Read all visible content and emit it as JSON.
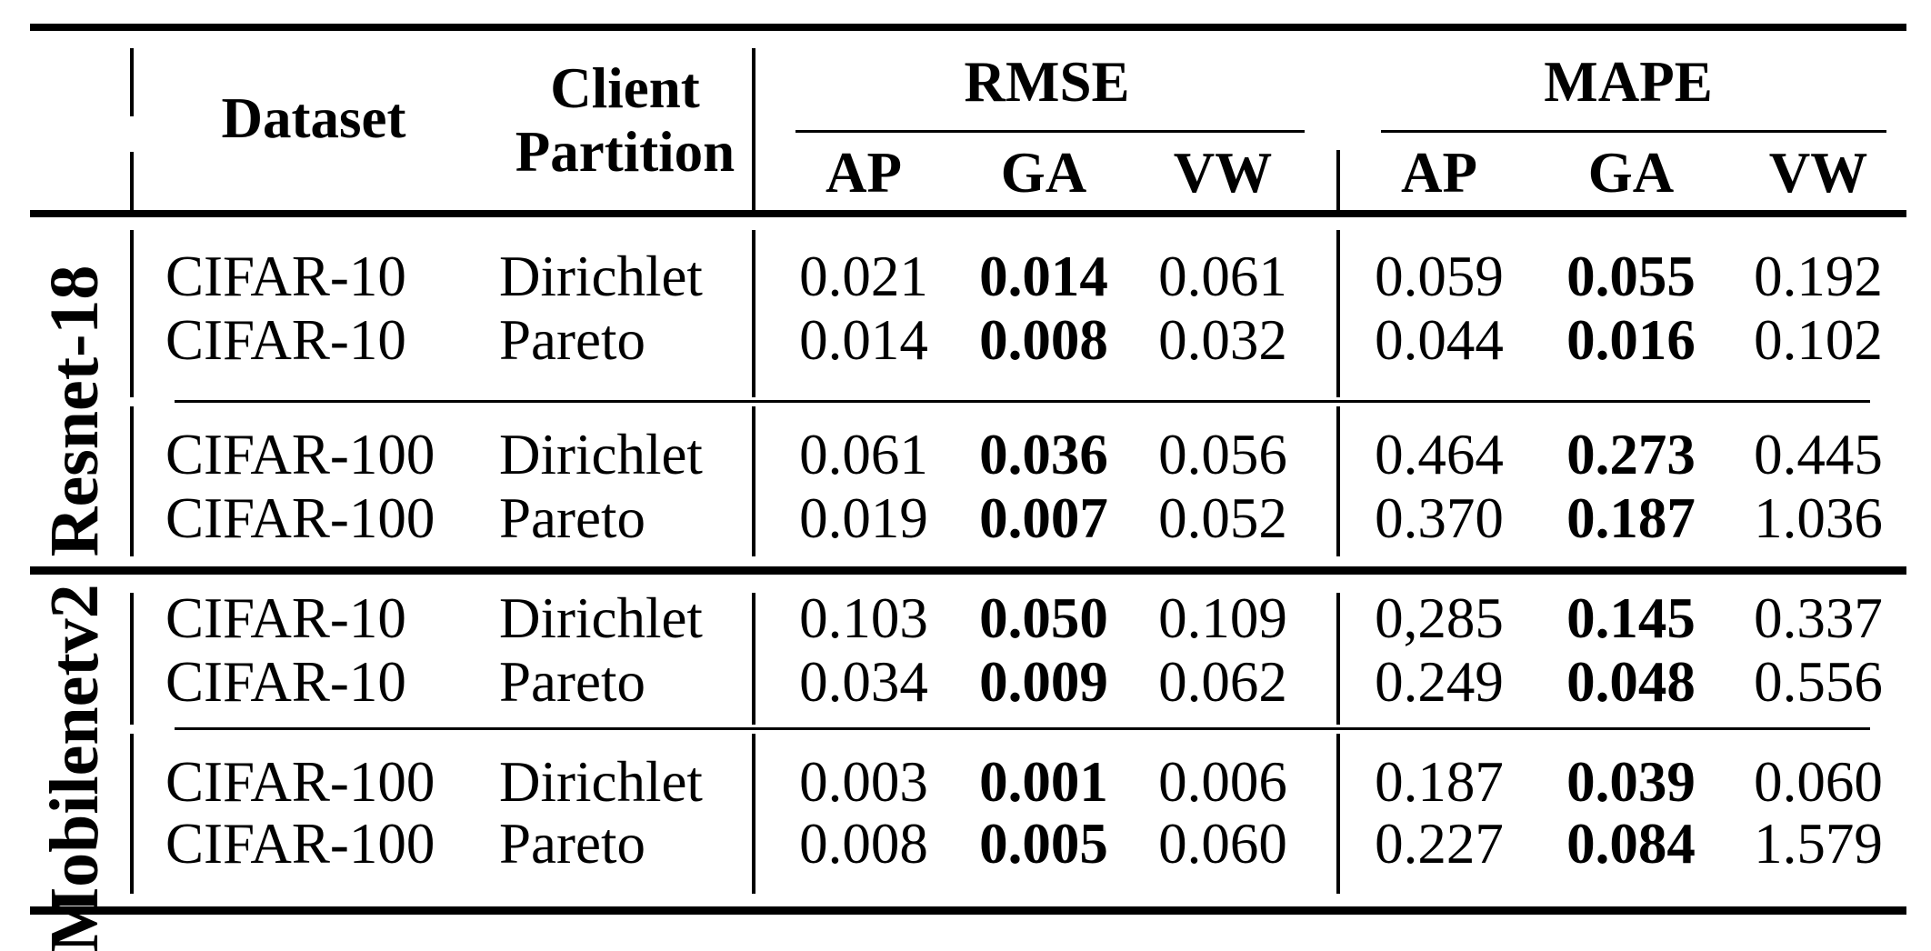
{
  "table": {
    "header": {
      "dataset_label": "Dataset",
      "client_partition_line1": "Client",
      "client_partition_line2": "Partition",
      "metric_groups": [
        {
          "label": "RMSE",
          "columns": [
            "AP",
            "GA",
            "VW"
          ]
        },
        {
          "label": "MAPE",
          "columns": [
            "AP",
            "GA",
            "VW"
          ]
        }
      ]
    },
    "sections": [
      {
        "model": "Resnet-18",
        "rows": [
          {
            "dataset": "CIFAR-10",
            "partition": "Dirichlet",
            "rmse": [
              "0.021",
              "0.014",
              "0.061"
            ],
            "mape": [
              "0.059",
              "0.055",
              "0.192"
            ]
          },
          {
            "dataset": "CIFAR-10",
            "partition": "Pareto",
            "rmse": [
              "0.014",
              "0.008",
              "0.032"
            ],
            "mape": [
              "0.044",
              "0.016",
              "0.102"
            ]
          },
          {
            "dataset": "CIFAR-100",
            "partition": "Dirichlet",
            "rmse": [
              "0.061",
              "0.036",
              "0.056"
            ],
            "mape": [
              "0.464",
              "0.273",
              "0.445"
            ]
          },
          {
            "dataset": "CIFAR-100",
            "partition": "Pareto",
            "rmse": [
              "0.019",
              "0.007",
              "0.052"
            ],
            "mape": [
              "0.370",
              "0.187",
              "1.036"
            ]
          }
        ]
      },
      {
        "model": "Mobilenetv2",
        "rows": [
          {
            "dataset": "CIFAR-10",
            "partition": "Dirichlet",
            "rmse": [
              "0.103",
              "0.050",
              "0.109"
            ],
            "mape": [
              "0,285",
              "0.145",
              "0.337"
            ]
          },
          {
            "dataset": "CIFAR-10",
            "partition": "Pareto",
            "rmse": [
              "0.034",
              "0.009",
              "0.062"
            ],
            "mape": [
              "0.249",
              "0.048",
              "0.556"
            ]
          },
          {
            "dataset": "CIFAR-100",
            "partition": "Dirichlet",
            "rmse": [
              "0.003",
              "0.001",
              "0.006"
            ],
            "mape": [
              "0.187",
              "0.039",
              "0.060"
            ]
          },
          {
            "dataset": "CIFAR-100",
            "partition": "Pareto",
            "rmse": [
              "0.008",
              "0.005",
              "0.060"
            ],
            "mape": [
              "0.227",
              "0.084",
              "1.579"
            ]
          }
        ]
      }
    ],
    "bold_column": "GA",
    "colors": {
      "text": "#000000",
      "background": "#ffffff",
      "rule": "#000000"
    }
  }
}
